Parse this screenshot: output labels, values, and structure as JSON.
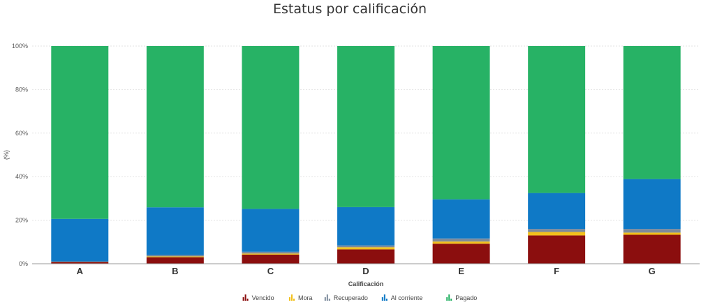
{
  "chart_data": {
    "type": "bar",
    "stacked": true,
    "title": "Estatus por calificación",
    "xlabel": "Calificación",
    "ylabel": "(%)",
    "ylim": [
      0,
      100
    ],
    "yticks": [
      "0%",
      "20%",
      "40%",
      "60%",
      "80%",
      "100%"
    ],
    "grid": true,
    "legend_position": "bottom",
    "categories": [
      "A",
      "B",
      "C",
      "D",
      "E",
      "F",
      "G"
    ],
    "series": [
      {
        "name": "Vencido",
        "color": "#8b0e0e",
        "values": [
          0.8,
          3.0,
          4.2,
          6.6,
          9.2,
          13.0,
          13.3
        ]
      },
      {
        "name": "Mora",
        "color": "#f2c01c",
        "values": [
          0.1,
          0.4,
          0.5,
          1.0,
          1.0,
          1.6,
          1.0
        ]
      },
      {
        "name": "Recuperado",
        "color": "#7d8b9c",
        "values": [
          0.1,
          0.6,
          0.8,
          0.8,
          1.4,
          1.4,
          1.7
        ]
      },
      {
        "name": "Al corriente",
        "color": "#0f79c6",
        "values": [
          19.6,
          21.9,
          19.7,
          17.6,
          18.0,
          16.5,
          22.9
        ]
      },
      {
        "name": "Pagado",
        "color": "#27b265",
        "values": [
          79.4,
          74.1,
          74.8,
          74.0,
          70.4,
          67.5,
          61.1
        ]
      }
    ]
  }
}
